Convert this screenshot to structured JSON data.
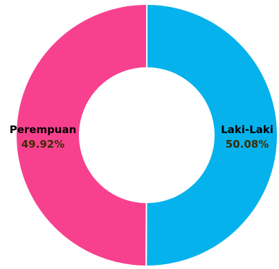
{
  "chart_data": {
    "type": "pie",
    "donut": true,
    "categories": [
      "Laki-Laki",
      "Perempuan"
    ],
    "values": [
      50.08,
      49.92
    ],
    "value_labels": [
      "50.08%",
      "49.92%"
    ],
    "colors": [
      "#06b2ec",
      "#f7418f"
    ],
    "title": "",
    "legend": "none"
  }
}
